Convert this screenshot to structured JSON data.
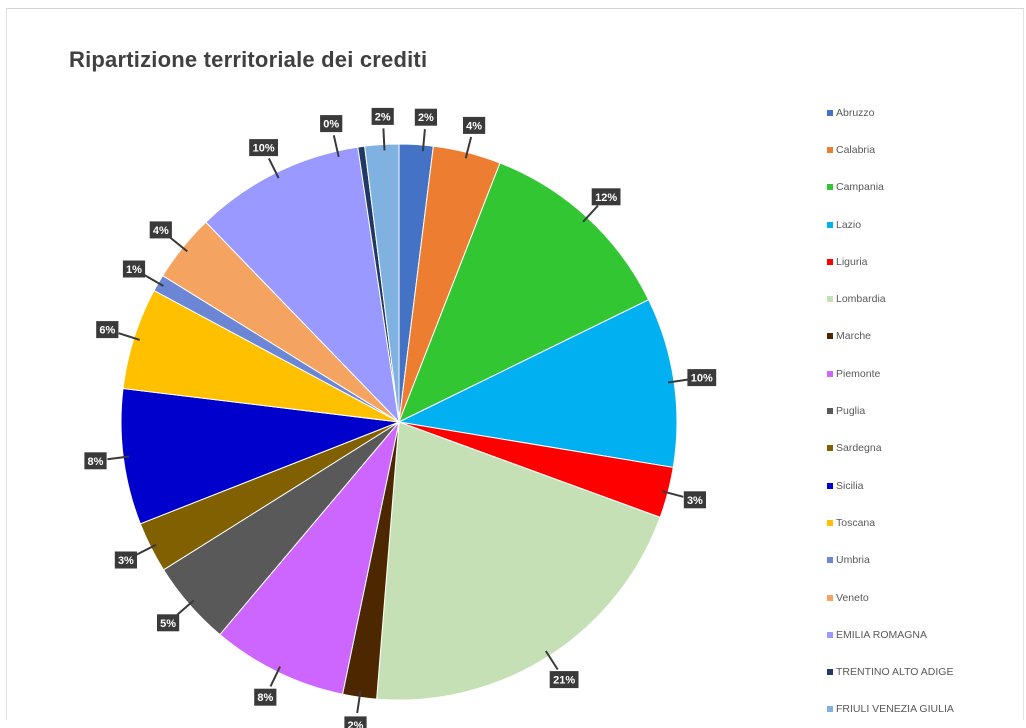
{
  "chart_data": {
    "type": "pie",
    "title": "Ripartizione territoriale dei crediti",
    "legend_position": "right",
    "slices": [
      {
        "name": "Abruzzo",
        "value": 2,
        "label": "2%",
        "color": "#4472c4"
      },
      {
        "name": "Calabria",
        "value": 4,
        "label": "4%",
        "color": "#ed7d31"
      },
      {
        "name": "Campania",
        "value": 12,
        "label": "12%",
        "color": "#33c633"
      },
      {
        "name": "Lazio",
        "value": 10,
        "label": "10%",
        "color": "#00b0f0"
      },
      {
        "name": "Liguria",
        "value": 3,
        "label": "3%",
        "color": "#ff0000"
      },
      {
        "name": "Lombardia",
        "value": 21,
        "label": "21%",
        "color": "#c5e0b4"
      },
      {
        "name": "Marche",
        "value": 2,
        "label": "2%",
        "color": "#4d2700"
      },
      {
        "name": "Piemonte",
        "value": 8,
        "label": "8%",
        "color": "#cc66ff"
      },
      {
        "name": "Puglia",
        "value": 5,
        "label": "5%",
        "color": "#595959"
      },
      {
        "name": "Sardegna",
        "value": 3,
        "label": "3%",
        "color": "#806000"
      },
      {
        "name": "Sicilia",
        "value": 8,
        "label": "8%",
        "color": "#0000cc"
      },
      {
        "name": "Toscana",
        "value": 6,
        "label": "6%",
        "color": "#ffc000"
      },
      {
        "name": "Umbria",
        "value": 1,
        "label": "1%",
        "color": "#6b86d4"
      },
      {
        "name": "Veneto",
        "value": 4,
        "label": "4%",
        "color": "#f4a460"
      },
      {
        "name": "EMILIA ROMAGNA",
        "value": 10,
        "label": "10%",
        "color": "#9999ff"
      },
      {
        "name": "TRENTINO ALTO ADIGE",
        "value": 0.4,
        "label": "0%",
        "color": "#1f3864"
      },
      {
        "name": "FRIULI VENEZIA GIULIA",
        "value": 2,
        "label": "2%",
        "color": "#7fb2e0"
      }
    ]
  }
}
